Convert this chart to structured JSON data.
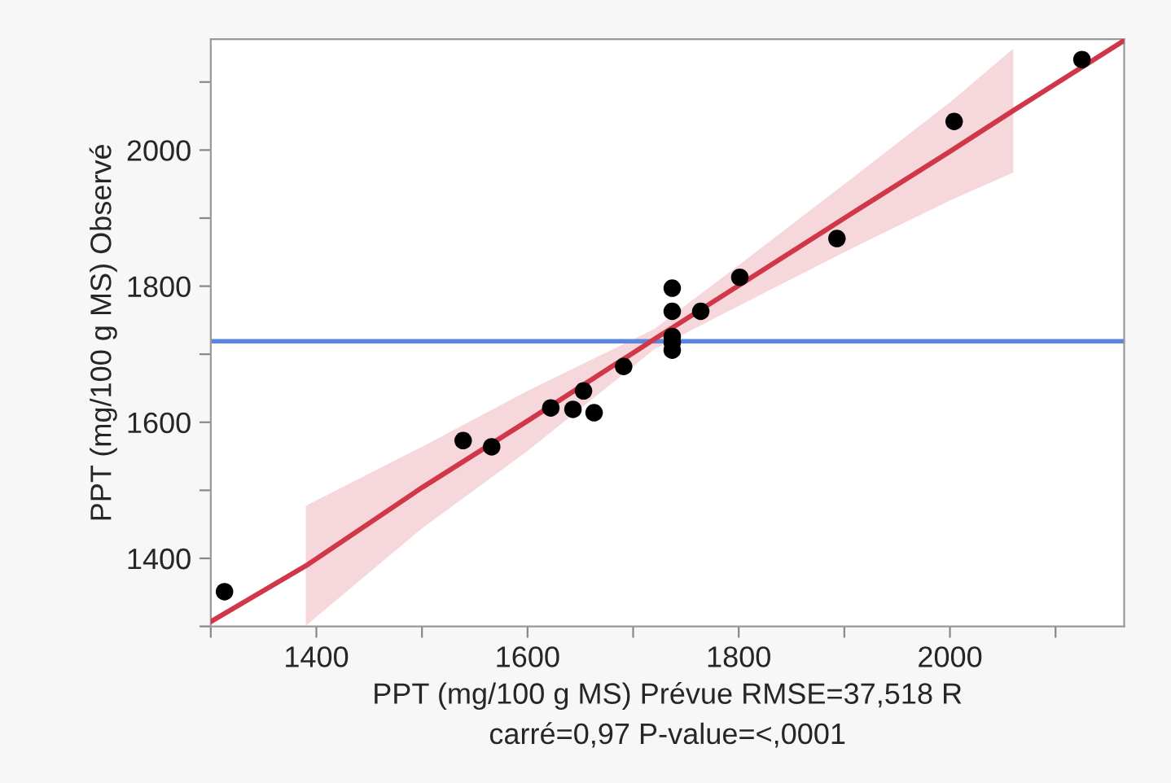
{
  "chart_data": {
    "type": "scatter",
    "xlabel": "PPT (mg/100 g MS) Prévue RMSE=37,518 R\ncarré=0,97 P-value=<,0001",
    "ylabel": "PPT (mg/100 g MS) Observé",
    "xlim": [
      1300,
      2165
    ],
    "ylim": [
      1300,
      2163
    ],
    "xticks": [
      {
        "value": 1300,
        "label": null
      },
      1400,
      {
        "value": 1500,
        "label": null
      },
      1600,
      {
        "value": 1700,
        "label": null
      },
      1800,
      {
        "value": 1900,
        "label": null
      },
      2000,
      {
        "value": 2100,
        "label": null
      }
    ],
    "yticks": [
      {
        "value": 1300,
        "label": null
      },
      1400,
      {
        "value": 1500,
        "label": null
      },
      1600,
      {
        "value": 1700,
        "label": null
      },
      1800,
      {
        "value": 1900,
        "label": null
      },
      2000,
      {
        "value": 2100,
        "label": null
      }
    ],
    "grid": false,
    "series": [
      {
        "type": "line",
        "marker": "none",
        "color": "#d0384a",
        "x": [
          1300,
          1390,
          1500,
          1600,
          1720,
          1800,
          1900,
          2000,
          2060,
          2165
        ],
        "values": [
          1307,
          1389,
          1504,
          1602,
          1722,
          1801,
          1900,
          1998,
          2058,
          2161
        ],
        "lower": [
          null,
          1301,
          1444,
          1558,
          1707,
          1771,
          1850,
          1926,
          1967,
          null
        ],
        "upper": [
          null,
          1477,
          1564,
          1646,
          1737,
          1831,
          1950,
          2070,
          2149,
          null
        ]
      },
      {
        "marker": "circle",
        "color": "#000000",
        "x": [
          1313,
          1539,
          1566,
          1622,
          1643,
          1653,
          1663,
          1691,
          1737,
          1737,
          1737,
          1737,
          1737,
          1764,
          1801,
          1893,
          2004,
          2125
        ],
        "values": [
          1351,
          1573,
          1564,
          1621,
          1619,
          1646,
          1614,
          1682,
          1797,
          1763,
          1726,
          1717,
          1706,
          1763,
          1813,
          1870,
          2042,
          2133
        ]
      }
    ],
    "ref_lines": [
      {
        "axis": "y",
        "value": 1719,
        "color": "#5b86dd"
      }
    ]
  }
}
